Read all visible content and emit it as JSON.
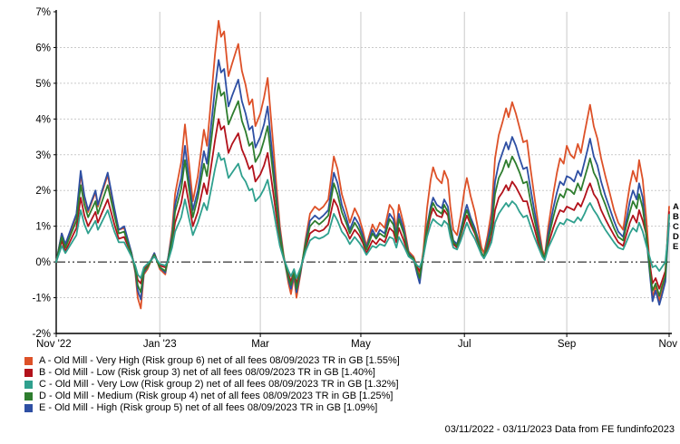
{
  "footer": "03/11/2022 - 03/11/2023 Data from FE fundinfo2023",
  "chart_data": {
    "type": "line",
    "title": "",
    "xlabel": "",
    "ylabel": "",
    "grid": true,
    "legend_position": "bottom-left",
    "y_axis": {
      "min": -2,
      "max": 7,
      "ticks": [
        7,
        6,
        5,
        4,
        3,
        2,
        1,
        0,
        -1,
        -2
      ],
      "unit": "%"
    },
    "x_axis": {
      "tick_labels": [
        "Nov '22",
        "Jan '23",
        "Mar",
        "May",
        "Jul",
        "Sep",
        "Nov"
      ],
      "tick_positions": [
        0,
        0.169,
        0.333,
        0.497,
        0.666,
        0.833,
        1.0
      ],
      "range": [
        "03/11/2022",
        "03/11/2023"
      ]
    },
    "x": [
      0,
      0.009,
      0.015,
      0.033,
      0.04,
      0.046,
      0.052,
      0.064,
      0.068,
      0.074,
      0.084,
      0.095,
      0.102,
      0.111,
      0.123,
      0.129,
      0.133,
      0.138,
      0.143,
      0.149,
      0.16,
      0.169,
      0.178,
      0.183,
      0.189,
      0.194,
      0.204,
      0.21,
      0.217,
      0.223,
      0.231,
      0.241,
      0.246,
      0.253,
      0.259,
      0.265,
      0.269,
      0.274,
      0.281,
      0.287,
      0.297,
      0.303,
      0.309,
      0.315,
      0.32,
      0.325,
      0.333,
      0.339,
      0.345,
      0.354,
      0.359,
      0.365,
      0.371,
      0.379,
      0.383,
      0.388,
      0.392,
      0.399,
      0.407,
      0.414,
      0.422,
      0.429,
      0.436,
      0.444,
      0.453,
      0.459,
      0.466,
      0.473,
      0.479,
      0.487,
      0.494,
      0.5,
      0.506,
      0.516,
      0.522,
      0.528,
      0.536,
      0.544,
      0.55,
      0.555,
      0.559,
      0.567,
      0.575,
      0.583,
      0.589,
      0.593,
      0.599,
      0.605,
      0.611,
      0.615,
      0.621,
      0.629,
      0.633,
      0.639,
      0.643,
      0.648,
      0.654,
      0.66,
      0.666,
      0.67,
      0.676,
      0.683,
      0.689,
      0.694,
      0.698,
      0.704,
      0.71,
      0.716,
      0.722,
      0.728,
      0.734,
      0.738,
      0.744,
      0.75,
      0.756,
      0.762,
      0.768,
      0.774,
      0.78,
      0.787,
      0.793,
      0.797,
      0.803,
      0.811,
      0.817,
      0.822,
      0.828,
      0.833,
      0.839,
      0.845,
      0.851,
      0.856,
      0.862,
      0.867,
      0.871,
      0.877,
      0.883,
      0.889,
      0.896,
      0.902,
      0.91,
      0.917,
      0.925,
      0.93,
      0.936,
      0.941,
      0.947,
      0.951,
      0.957,
      0.963,
      0.969,
      0.973,
      0.978,
      0.984,
      0.988,
      0.994,
      0.998,
      1
    ],
    "series": [
      {
        "id": "A",
        "label": "A - Old Mill - Very High (Risk group 6) net of all fees 08/09/2023 TR in GB [1.55%]",
        "color": "#dd5128",
        "final_value_pct": 1.55,
        "values": [
          0,
          0.8,
          0.45,
          1.3,
          2.45,
          1.8,
          1.4,
          1.95,
          1.55,
          1.9,
          2.43,
          1.45,
          0.9,
          0.95,
          0.25,
          -0.3,
          -1.0,
          -1.3,
          -0.35,
          -0.2,
          0.25,
          -0.2,
          -0.35,
          0.15,
          0.9,
          1.9,
          2.8,
          3.85,
          2.7,
          1.7,
          2.4,
          3.7,
          3.25,
          4.6,
          5.8,
          6.75,
          6.3,
          6.45,
          5.2,
          5.55,
          6.1,
          5.35,
          4.95,
          4.4,
          4.55,
          3.8,
          4.15,
          4.6,
          5.15,
          3.3,
          2.2,
          1.0,
          0.2,
          -0.6,
          -0.9,
          -0.4,
          -1.0,
          -0.3,
          0.65,
          1.35,
          1.55,
          1.45,
          1.55,
          1.75,
          2.95,
          2.6,
          1.9,
          1.5,
          1.1,
          1.5,
          1.25,
          0.9,
          0.45,
          1.05,
          0.85,
          1.1,
          0.95,
          1.6,
          1.45,
          0.9,
          1.6,
          1.05,
          0.3,
          0.15,
          -0.15,
          -0.35,
          0.3,
          1.5,
          2.3,
          2.65,
          2.35,
          2.2,
          2.55,
          2.3,
          1.55,
          0.9,
          0.75,
          1.3,
          2.0,
          2.35,
          1.85,
          1.4,
          0.85,
          0.4,
          0.25,
          0.75,
          1.4,
          2.9,
          3.55,
          3.9,
          4.3,
          4.05,
          4.47,
          4.15,
          3.75,
          3.35,
          3.4,
          2.6,
          1.85,
          1.0,
          0.35,
          0.15,
          1.0,
          1.9,
          2.5,
          2.9,
          2.75,
          3.25,
          3.0,
          2.9,
          3.3,
          3.05,
          3.6,
          4.05,
          4.4,
          3.8,
          3.45,
          2.9,
          2.4,
          2.0,
          1.45,
          1.1,
          0.9,
          1.5,
          2.15,
          2.55,
          2.25,
          2.85,
          2.3,
          1.15,
          -0.2,
          -1.0,
          -0.65,
          -1.1,
          -0.8,
          -0.4,
          0.9,
          1.55
        ]
      },
      {
        "id": "B",
        "label": "B - Old Mill - Low (Risk group 3) net of all fees 08/09/2023 TR in GB [1.40%]",
        "color": "#b2121b",
        "final_value_pct": 1.4,
        "values": [
          0,
          0.6,
          0.3,
          0.95,
          1.8,
          1.3,
          1.0,
          1.4,
          1.1,
          1.35,
          1.75,
          1.05,
          0.65,
          0.7,
          0.2,
          -0.15,
          -0.5,
          -0.6,
          -0.2,
          -0.1,
          0.2,
          -0.1,
          -0.15,
          0.1,
          0.55,
          1.1,
          1.65,
          2.25,
          1.6,
          1.0,
          1.4,
          2.2,
          1.9,
          2.7,
          3.4,
          4.0,
          3.7,
          3.8,
          3.05,
          3.3,
          3.6,
          3.15,
          2.9,
          2.6,
          2.7,
          2.25,
          2.45,
          2.7,
          3.05,
          1.95,
          1.3,
          0.6,
          0.1,
          -0.35,
          -0.55,
          -0.25,
          -0.6,
          -0.2,
          0.4,
          0.8,
          0.9,
          0.85,
          0.9,
          1.05,
          1.75,
          1.55,
          1.1,
          0.9,
          0.65,
          0.9,
          0.75,
          0.55,
          0.25,
          0.6,
          0.5,
          0.65,
          0.55,
          0.95,
          0.85,
          0.55,
          0.95,
          0.6,
          0.2,
          0.1,
          -0.15,
          -0.25,
          0.15,
          0.85,
          1.3,
          1.5,
          1.3,
          1.25,
          1.45,
          1.3,
          0.85,
          0.5,
          0.4,
          0.75,
          1.1,
          1.3,
          1.05,
          0.8,
          0.5,
          0.2,
          0.15,
          0.4,
          0.7,
          1.45,
          1.8,
          1.95,
          2.15,
          2.0,
          2.25,
          2.1,
          1.9,
          1.7,
          1.7,
          1.3,
          0.95,
          0.5,
          0.2,
          0.1,
          0.5,
          0.95,
          1.25,
          1.45,
          1.4,
          1.55,
          1.5,
          1.45,
          1.65,
          1.55,
          1.8,
          2.05,
          2.2,
          1.9,
          1.75,
          1.45,
          1.2,
          1.0,
          0.75,
          0.55,
          0.45,
          0.75,
          1.1,
          1.3,
          1.1,
          1.45,
          1.15,
          0.75,
          -0.1,
          -0.6,
          -0.45,
          -0.75,
          -0.55,
          -0.25,
          0.8,
          1.4
        ]
      },
      {
        "id": "C",
        "label": "C - Old Mill - Very Low (Risk group 2) net of all fees 08/09/2023 TR in GB [1.32%]",
        "color": "#2fa08e",
        "final_value_pct": 1.32,
        "values": [
          0,
          0.45,
          0.25,
          0.75,
          1.45,
          1.05,
          0.8,
          1.15,
          0.9,
          1.1,
          1.45,
          0.85,
          0.55,
          0.55,
          0.15,
          -0.1,
          -0.35,
          -0.45,
          -0.15,
          -0.05,
          0.15,
          -0.05,
          -0.1,
          0.05,
          0.4,
          0.85,
          1.25,
          1.75,
          1.2,
          0.75,
          1.1,
          1.65,
          1.45,
          2.05,
          2.6,
          3.05,
          2.85,
          2.9,
          2.35,
          2.5,
          2.75,
          2.4,
          2.25,
          2.0,
          2.05,
          1.7,
          1.85,
          2.05,
          2.3,
          1.5,
          1.0,
          0.45,
          0.1,
          -0.25,
          -0.4,
          -0.2,
          -0.45,
          -0.15,
          0.3,
          0.6,
          0.7,
          0.65,
          0.7,
          0.8,
          1.35,
          1.15,
          0.85,
          0.7,
          0.5,
          0.7,
          0.55,
          0.4,
          0.2,
          0.45,
          0.4,
          0.5,
          0.45,
          0.7,
          0.65,
          0.4,
          0.7,
          0.45,
          0.15,
          0.05,
          -0.1,
          -0.15,
          0.15,
          0.7,
          1.05,
          1.2,
          1.1,
          1.0,
          1.15,
          1.05,
          0.7,
          0.4,
          0.35,
          0.6,
          0.9,
          1.1,
          0.85,
          0.65,
          0.4,
          0.2,
          0.1,
          0.3,
          0.55,
          1.1,
          1.35,
          1.5,
          1.65,
          1.55,
          1.7,
          1.6,
          1.4,
          1.25,
          1.3,
          1.0,
          0.7,
          0.4,
          0.15,
          0.05,
          0.4,
          0.7,
          0.95,
          1.1,
          1.05,
          1.2,
          1.15,
          1.1,
          1.25,
          1.15,
          1.35,
          1.55,
          1.65,
          1.45,
          1.3,
          1.1,
          0.9,
          0.75,
          0.55,
          0.4,
          0.35,
          0.55,
          0.8,
          0.95,
          0.85,
          1.1,
          0.85,
          0.45,
          0.1,
          -0.15,
          -0.1,
          -0.25,
          -0.15,
          0.0,
          0.7,
          1.32
        ]
      },
      {
        "id": "D",
        "label": "D - Old Mill - Medium (Risk group 4) net of all fees 08/09/2023 TR in GB [1.25%]",
        "color": "#2e7d2e",
        "final_value_pct": 1.25,
        "values": [
          0,
          0.7,
          0.4,
          1.15,
          2.15,
          1.6,
          1.25,
          1.7,
          1.35,
          1.65,
          2.15,
          1.3,
          0.8,
          0.85,
          0.2,
          -0.2,
          -0.65,
          -0.85,
          -0.25,
          -0.15,
          0.2,
          -0.15,
          -0.25,
          0.1,
          0.65,
          1.4,
          2.05,
          2.85,
          2.0,
          1.25,
          1.8,
          2.75,
          2.4,
          3.4,
          4.3,
          5.0,
          4.65,
          4.75,
          3.85,
          4.1,
          4.5,
          3.95,
          3.65,
          3.25,
          3.35,
          2.8,
          3.05,
          3.4,
          3.8,
          2.45,
          1.65,
          0.75,
          0.15,
          -0.45,
          -0.65,
          -0.3,
          -0.75,
          -0.2,
          0.5,
          1.0,
          1.15,
          1.05,
          1.15,
          1.3,
          2.2,
          1.9,
          1.4,
          1.1,
          0.8,
          1.1,
          0.9,
          0.65,
          0.35,
          0.8,
          0.65,
          0.8,
          0.7,
          1.2,
          1.05,
          0.65,
          1.2,
          0.8,
          0.2,
          0.1,
          -0.25,
          -0.45,
          0.2,
          0.95,
          1.45,
          1.65,
          1.45,
          1.35,
          1.6,
          1.4,
          0.95,
          0.55,
          0.45,
          0.8,
          1.25,
          1.45,
          1.15,
          0.85,
          0.55,
          0.25,
          0.15,
          0.5,
          0.9,
          1.9,
          2.35,
          2.55,
          2.85,
          2.65,
          2.95,
          2.75,
          2.5,
          2.2,
          2.25,
          1.7,
          1.2,
          0.65,
          0.25,
          0.1,
          0.65,
          1.25,
          1.65,
          1.9,
          1.8,
          2.05,
          2.0,
          1.9,
          2.2,
          2.0,
          2.35,
          2.65,
          2.9,
          2.5,
          2.3,
          1.9,
          1.6,
          1.3,
          0.95,
          0.7,
          0.6,
          1.0,
          1.4,
          1.7,
          1.5,
          1.9,
          1.5,
          0.7,
          -0.3,
          -0.8,
          -0.6,
          -0.95,
          -0.7,
          -0.4,
          0.75,
          1.25
        ]
      },
      {
        "id": "E",
        "label": "E - Old Mill - High (Risk group 5) net of all fees 08/09/2023 TR in GB [1.09%]",
        "color": "#2e4fa3",
        "final_value_pct": 1.09,
        "values": [
          0,
          0.8,
          0.5,
          1.35,
          2.55,
          1.85,
          1.45,
          2.0,
          1.6,
          1.95,
          2.5,
          1.5,
          0.9,
          1.0,
          0.25,
          -0.25,
          -0.8,
          -1.05,
          -0.3,
          -0.15,
          0.25,
          -0.15,
          -0.3,
          0.15,
          0.75,
          1.6,
          2.35,
          3.25,
          2.25,
          1.45,
          2.0,
          3.1,
          2.75,
          3.85,
          4.85,
          5.65,
          5.3,
          5.4,
          4.35,
          4.65,
          5.1,
          4.5,
          4.15,
          3.7,
          3.8,
          3.2,
          3.5,
          3.85,
          4.35,
          2.75,
          1.85,
          0.85,
          0.15,
          -0.5,
          -0.75,
          -0.35,
          -0.85,
          -0.25,
          0.55,
          1.15,
          1.3,
          1.2,
          1.3,
          1.45,
          2.5,
          2.2,
          1.6,
          1.25,
          0.9,
          1.25,
          1.05,
          0.75,
          0.4,
          0.9,
          0.7,
          0.9,
          0.8,
          1.35,
          1.2,
          0.75,
          1.35,
          0.9,
          0.25,
          0.1,
          -0.35,
          -0.6,
          0.2,
          1.0,
          1.55,
          1.8,
          1.6,
          1.5,
          1.75,
          1.55,
          1.05,
          0.6,
          0.5,
          0.9,
          1.35,
          1.6,
          1.25,
          0.95,
          0.6,
          0.25,
          0.15,
          0.6,
          1.1,
          2.25,
          2.75,
          3.05,
          3.35,
          3.15,
          3.5,
          3.25,
          2.9,
          2.6,
          2.65,
          2.05,
          1.45,
          0.8,
          0.25,
          0.1,
          0.8,
          1.5,
          1.95,
          2.25,
          2.15,
          2.4,
          2.35,
          2.25,
          2.55,
          2.4,
          2.8,
          3.15,
          3.45,
          2.95,
          2.7,
          2.25,
          1.85,
          1.55,
          1.15,
          0.85,
          0.7,
          1.15,
          1.7,
          2.0,
          1.75,
          2.2,
          1.8,
          0.65,
          -0.4,
          -1.1,
          -0.8,
          -1.2,
          -0.95,
          -0.55,
          0.6,
          1.09
        ]
      }
    ],
    "end_labels": [
      "A",
      "B",
      "C",
      "D",
      "E"
    ]
  }
}
